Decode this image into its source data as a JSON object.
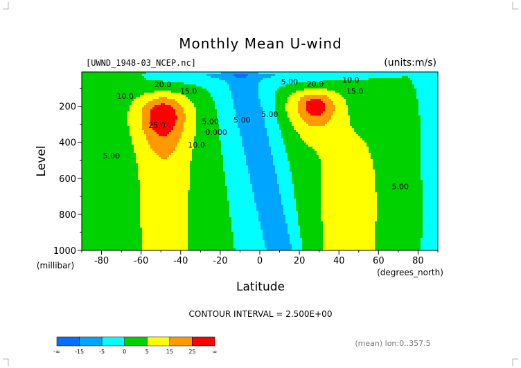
{
  "chart_data": {
    "type": "heatmap",
    "subtype": "filled-contour",
    "title": "Monthly Mean U-wind",
    "file_label": "[UWND_1948-03_NCEP.nc]",
    "units_label": "(units:m/s)",
    "xlabel": "Latitude",
    "x_units": "(degrees_north)",
    "ylabel": "Level",
    "y_units": "(millibar)",
    "xlim": [
      -90,
      90
    ],
    "ylim": [
      1000,
      10
    ],
    "xticks": [
      -80,
      -60,
      -40,
      -20,
      0,
      20,
      40,
      60,
      80
    ],
    "yticks": [
      200,
      400,
      600,
      800,
      1000
    ],
    "contour_interval_text": "CONTOUR INTERVAL = 2.500E+00",
    "mean_text": "(mean) lon:0..357.5",
    "contour_labels": [
      {
        "text": "20.0",
        "lat": -49,
        "lev": 95
      },
      {
        "text": "15.0",
        "lat": -36,
        "lev": 130
      },
      {
        "text": "10.0",
        "lat": -68,
        "lev": 160
      },
      {
        "text": "25.0",
        "lat": -52,
        "lev": 320
      },
      {
        "text": "5.00",
        "lat": -75,
        "lev": 490
      },
      {
        "text": "10.0",
        "lat": -32,
        "lev": 430
      },
      {
        "text": "5.00",
        "lat": -25,
        "lev": 300
      },
      {
        "text": "0.000",
        "lat": -22,
        "lev": 360
      },
      {
        "text": "5.00",
        "lat": -9,
        "lev": 290
      },
      {
        "text": "5.00",
        "lat": 5,
        "lev": 260
      },
      {
        "text": "5.00",
        "lat": 15,
        "lev": 80
      },
      {
        "text": "20.0",
        "lat": 28,
        "lev": 90
      },
      {
        "text": "10.0",
        "lat": 46,
        "lev": 70
      },
      {
        "text": "15.0",
        "lat": 48,
        "lev": 130
      },
      {
        "text": "5.00",
        "lat": 71,
        "lev": 660
      }
    ],
    "legend": {
      "tick_labels": [
        "-∞",
        "-15",
        "-5",
        "0",
        "5",
        "15",
        "25",
        "∞"
      ],
      "colors": [
        "#0070ff",
        "#00a5ff",
        "#00ffff",
        "#00d200",
        "#ffff00",
        "#ff9900",
        "#ff0000"
      ]
    },
    "jets": [
      {
        "lat": -49,
        "lev": 250,
        "peak": 27
      },
      {
        "lat": 28,
        "lev": 200,
        "peak": 27
      }
    ]
  }
}
